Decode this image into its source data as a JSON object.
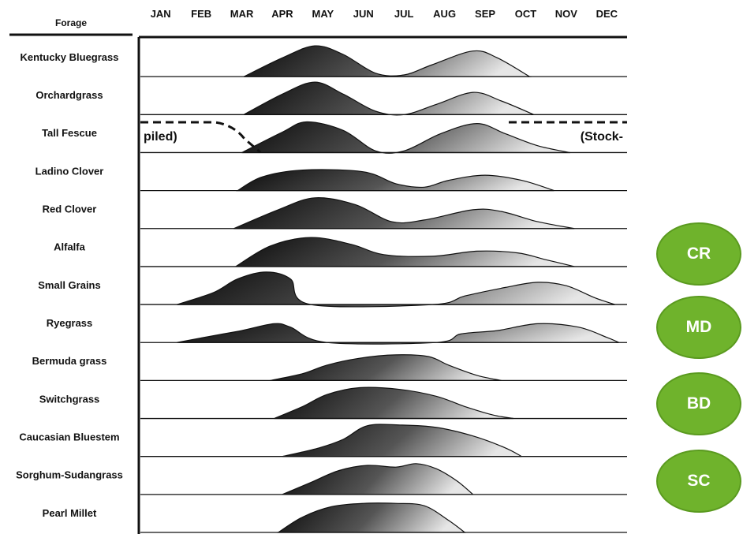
{
  "chart_data": {
    "type": "area",
    "header": "Forage",
    "months": [
      "JAN",
      "FEB",
      "MAR",
      "APR",
      "MAY",
      "JUN",
      "JUL",
      "AUG",
      "SEP",
      "OCT",
      "NOV",
      "DEC"
    ],
    "x_range": [
      0,
      12
    ],
    "y_range": [
      0,
      1
    ],
    "stockpiled_note": {
      "left": "piled)",
      "right": "(Stock-",
      "forage": "Tall Fescue"
    },
    "series": [
      {
        "name": "Kentucky Bluegrass",
        "points": [
          [
            2.55,
            0
          ],
          [
            3.5,
            0.55
          ],
          [
            4.3,
            0.9
          ],
          [
            5.0,
            0.65
          ],
          [
            5.8,
            0.1
          ],
          [
            6.5,
            0.05
          ],
          [
            7.2,
            0.35
          ],
          [
            8.2,
            0.75
          ],
          [
            8.8,
            0.55
          ],
          [
            9.6,
            0
          ]
        ]
      },
      {
        "name": "Orchardgrass",
        "points": [
          [
            2.55,
            0
          ],
          [
            3.5,
            0.6
          ],
          [
            4.3,
            0.95
          ],
          [
            5.0,
            0.6
          ],
          [
            5.8,
            0.1
          ],
          [
            6.5,
            0
          ],
          [
            7.3,
            0.3
          ],
          [
            8.2,
            0.65
          ],
          [
            8.9,
            0.4
          ],
          [
            9.7,
            0
          ]
        ]
      },
      {
        "name": "Tall Fescue",
        "points": [
          [
            2.5,
            0
          ],
          [
            3.5,
            0.6
          ],
          [
            4.1,
            0.9
          ],
          [
            5.0,
            0.65
          ],
          [
            5.8,
            0.05
          ],
          [
            6.5,
            0.05
          ],
          [
            7.4,
            0.55
          ],
          [
            8.3,
            0.85
          ],
          [
            9.0,
            0.55
          ],
          [
            9.8,
            0.2
          ],
          [
            10.6,
            0
          ]
        ]
      },
      {
        "name": "Ladino Clover",
        "points": [
          [
            2.4,
            0
          ],
          [
            3.0,
            0.4
          ],
          [
            4.0,
            0.6
          ],
          [
            5.5,
            0.55
          ],
          [
            6.3,
            0.2
          ],
          [
            7.0,
            0.1
          ],
          [
            7.6,
            0.3
          ],
          [
            8.5,
            0.45
          ],
          [
            9.4,
            0.3
          ],
          [
            10.2,
            0
          ]
        ]
      },
      {
        "name": "Red Clover",
        "points": [
          [
            2.3,
            0
          ],
          [
            3.4,
            0.55
          ],
          [
            4.3,
            0.9
          ],
          [
            5.3,
            0.7
          ],
          [
            6.2,
            0.2
          ],
          [
            7.0,
            0.25
          ],
          [
            8.2,
            0.55
          ],
          [
            8.9,
            0.5
          ],
          [
            9.8,
            0.2
          ],
          [
            10.7,
            0
          ]
        ]
      },
      {
        "name": "Alfalfa",
        "points": [
          [
            2.35,
            0
          ],
          [
            3.2,
            0.6
          ],
          [
            4.2,
            0.85
          ],
          [
            5.2,
            0.65
          ],
          [
            6.0,
            0.35
          ],
          [
            7.2,
            0.3
          ],
          [
            8.3,
            0.45
          ],
          [
            9.3,
            0.4
          ],
          [
            10.0,
            0.2
          ],
          [
            10.7,
            0
          ]
        ]
      },
      {
        "name": "Small Grains",
        "points": [
          [
            0.9,
            0
          ],
          [
            1.8,
            0.35
          ],
          [
            2.4,
            0.75
          ],
          [
            3.1,
            0.95
          ],
          [
            3.7,
            0.75
          ],
          [
            4.2,
            0
          ],
          [
            7.2,
            0
          ],
          [
            8.0,
            0.25
          ],
          [
            9.0,
            0.5
          ],
          [
            9.8,
            0.65
          ],
          [
            10.5,
            0.55
          ],
          [
            11.2,
            0.2
          ],
          [
            11.7,
            0
          ]
        ]
      },
      {
        "name": "Ryegrass",
        "points": [
          [
            0.9,
            0
          ],
          [
            1.8,
            0.2
          ],
          [
            2.5,
            0.35
          ],
          [
            3.3,
            0.55
          ],
          [
            3.7,
            0.45
          ],
          [
            4.6,
            0
          ],
          [
            7.3,
            0
          ],
          [
            7.9,
            0.25
          ],
          [
            8.8,
            0.35
          ],
          [
            9.8,
            0.55
          ],
          [
            10.8,
            0.45
          ],
          [
            11.5,
            0.15
          ],
          [
            11.8,
            0
          ]
        ]
      },
      {
        "name": "Bermuda grass",
        "points": [
          [
            3.2,
            0
          ],
          [
            4.0,
            0.2
          ],
          [
            4.6,
            0.45
          ],
          [
            5.4,
            0.65
          ],
          [
            6.3,
            0.75
          ],
          [
            7.1,
            0.7
          ],
          [
            7.6,
            0.45
          ],
          [
            8.3,
            0.15
          ],
          [
            8.9,
            0
          ]
        ]
      },
      {
        "name": "Switchgrass",
        "points": [
          [
            3.3,
            0
          ],
          [
            4.0,
            0.35
          ],
          [
            4.6,
            0.7
          ],
          [
            5.4,
            0.9
          ],
          [
            6.4,
            0.85
          ],
          [
            7.3,
            0.65
          ],
          [
            8.0,
            0.35
          ],
          [
            8.7,
            0.1
          ],
          [
            9.2,
            0
          ]
        ]
      },
      {
        "name": "Caucasian Bluestem",
        "points": [
          [
            3.5,
            0
          ],
          [
            4.4,
            0.25
          ],
          [
            5.0,
            0.5
          ],
          [
            5.6,
            0.9
          ],
          [
            6.4,
            0.92
          ],
          [
            7.3,
            0.85
          ],
          [
            8.2,
            0.6
          ],
          [
            9.0,
            0.25
          ],
          [
            9.4,
            0
          ]
        ]
      },
      {
        "name": "Sorghum-Sudangrass",
        "points": [
          [
            3.5,
            0
          ],
          [
            4.2,
            0.35
          ],
          [
            4.9,
            0.7
          ],
          [
            5.6,
            0.85
          ],
          [
            6.3,
            0.8
          ],
          [
            6.8,
            0.9
          ],
          [
            7.3,
            0.75
          ],
          [
            7.8,
            0.4
          ],
          [
            8.2,
            0
          ]
        ]
      },
      {
        "name": "Pearl Millet",
        "points": [
          [
            3.4,
            0
          ],
          [
            4.0,
            0.45
          ],
          [
            4.7,
            0.75
          ],
          [
            5.5,
            0.85
          ],
          [
            6.3,
            0.85
          ],
          [
            7.0,
            0.78
          ],
          [
            7.6,
            0.35
          ],
          [
            8.0,
            0
          ]
        ]
      }
    ]
  },
  "badges": [
    "CR",
    "MD",
    "BD",
    "SC"
  ]
}
